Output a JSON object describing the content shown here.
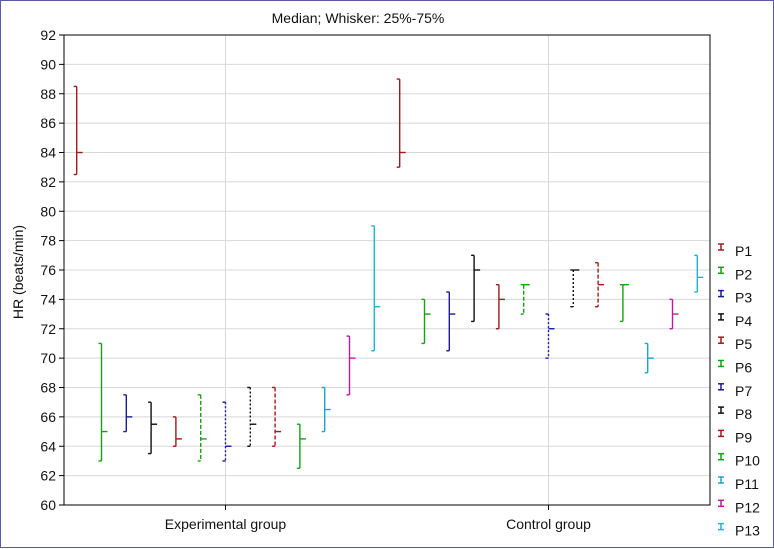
{
  "chart_data": {
    "type": "whisker",
    "title": "Median; Whisker: 25%-75%",
    "xlabel": "",
    "ylabel": "HR (beats/min)",
    "ylim": [
      60,
      92
    ],
    "yticks": [
      60,
      62,
      64,
      66,
      68,
      70,
      72,
      74,
      76,
      78,
      80,
      82,
      84,
      86,
      88,
      90,
      92
    ],
    "categories": [
      "Experimental group",
      "Control group"
    ],
    "grid": true,
    "legend_position": "right",
    "series": [
      {
        "name": "P1",
        "color": "#a01a1a",
        "dash": "solid",
        "values": [
          {
            "median": 84.0,
            "q1": 82.5,
            "q3": 88.5
          },
          {
            "median": 84.0,
            "q1": 83.0,
            "q3": 89.0
          }
        ]
      },
      {
        "name": "P2",
        "color": "#16a016",
        "dash": "solid",
        "values": [
          {
            "median": 65.0,
            "q1": 63.0,
            "q3": 71.0
          },
          {
            "median": 73.0,
            "q1": 71.0,
            "q3": 74.0
          }
        ]
      },
      {
        "name": "P3",
        "color": "#1a1a9a",
        "dash": "solid",
        "values": [
          {
            "median": 66.0,
            "q1": 65.0,
            "q3": 67.5
          },
          {
            "median": 73.0,
            "q1": 70.5,
            "q3": 74.5
          }
        ]
      },
      {
        "name": "P4",
        "color": "#111111",
        "dash": "solid",
        "values": [
          {
            "median": 65.5,
            "q1": 63.5,
            "q3": 67.0
          },
          {
            "median": 76.0,
            "q1": 72.5,
            "q3": 77.0
          }
        ]
      },
      {
        "name": "P5",
        "color": "#a01a1a",
        "dash": "solid",
        "values": [
          {
            "median": 64.5,
            "q1": 64.0,
            "q3": 66.0
          },
          {
            "median": 74.0,
            "q1": 72.0,
            "q3": 75.0
          }
        ]
      },
      {
        "name": "P6",
        "color": "#16a016",
        "dash": "dashed",
        "values": [
          {
            "median": 64.5,
            "q1": 63.0,
            "q3": 67.5
          },
          {
            "median": 75.0,
            "q1": 73.0,
            "q3": 75.0
          }
        ]
      },
      {
        "name": "P7",
        "color": "#1a1a9a",
        "dash": "dotted",
        "values": [
          {
            "median": 64.0,
            "q1": 63.0,
            "q3": 67.0
          },
          {
            "median": 72.0,
            "q1": 70.0,
            "q3": 73.0
          }
        ]
      },
      {
        "name": "P8",
        "color": "#111111",
        "dash": "dotted",
        "values": [
          {
            "median": 65.5,
            "q1": 64.0,
            "q3": 68.0
          },
          {
            "median": 76.0,
            "q1": 73.5,
            "q3": 76.0
          }
        ]
      },
      {
        "name": "P9",
        "color": "#a01a1a",
        "dash": "dashed",
        "values": [
          {
            "median": 65.0,
            "q1": 64.0,
            "q3": 68.0
          },
          {
            "median": 75.0,
            "q1": 73.5,
            "q3": 76.5
          }
        ]
      },
      {
        "name": "P10",
        "color": "#16a016",
        "dash": "solid",
        "values": [
          {
            "median": 64.5,
            "q1": 62.5,
            "q3": 65.5
          },
          {
            "median": 75.0,
            "q1": 72.5,
            "q3": 75.0
          }
        ]
      },
      {
        "name": "P11",
        "color": "#1aa5c8",
        "dash": "solid",
        "values": [
          {
            "median": 66.5,
            "q1": 65.0,
            "q3": 68.0
          },
          {
            "median": 70.0,
            "q1": 69.0,
            "q3": 71.0
          }
        ]
      },
      {
        "name": "P12",
        "color": "#c01a9a",
        "dash": "solid",
        "values": [
          {
            "median": 70.0,
            "q1": 67.5,
            "q3": 71.5
          },
          {
            "median": 73.0,
            "q1": 72.0,
            "q3": 74.0
          }
        ]
      },
      {
        "name": "P13",
        "color": "#1ab5d0",
        "dash": "solid",
        "values": [
          {
            "median": 73.5,
            "q1": 70.5,
            "q3": 79.0
          },
          {
            "median": 75.5,
            "q1": 74.5,
            "q3": 77.0
          }
        ]
      }
    ]
  }
}
